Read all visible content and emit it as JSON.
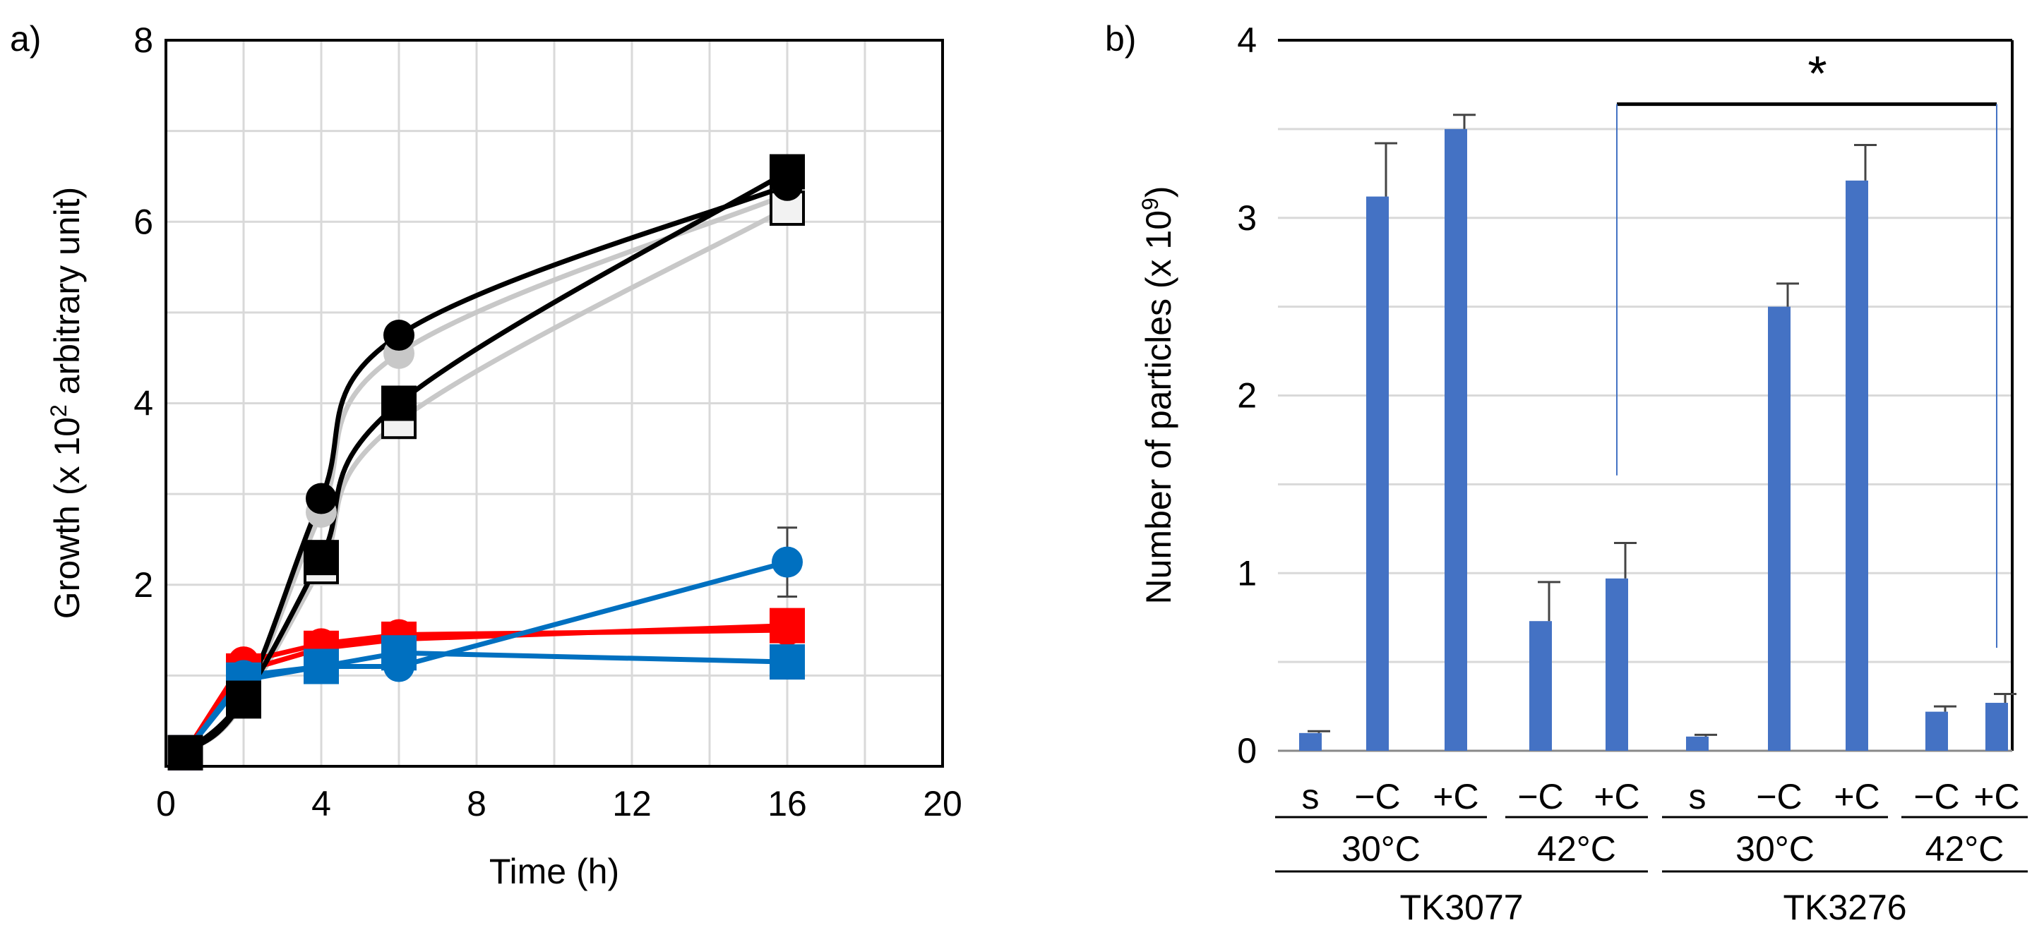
{
  "colors": {
    "black": "#000000",
    "gray": "#c8c8c8",
    "red": "#ff0000",
    "blue": "#0070c0",
    "bar": "#4472c4",
    "grid": "#d9d9d9"
  },
  "chart_data": [
    {
      "panel": "a)",
      "type": "line",
      "xlabel": "Time (h)",
      "ylabel_pre": "Growth (x 10",
      "ylabel_sup": "2",
      "ylabel_post": " arbitrary unit)",
      "xlim": [
        0,
        20
      ],
      "ylim": [
        0,
        8
      ],
      "xticks": [
        "0",
        "4",
        "8",
        "12",
        "16",
        "20"
      ],
      "yticks": [
        "2",
        "4",
        "6",
        "8"
      ],
      "series": [
        {
          "name": "black-circle",
          "color": "black",
          "marker": "circle",
          "x": [
            0.5,
            2,
            4,
            6,
            16
          ],
          "y": [
            0.15,
            0.75,
            2.95,
            4.75,
            6.4
          ]
        },
        {
          "name": "gray-circle",
          "color": "gray",
          "marker": "circle",
          "x": [
            0.5,
            2,
            4,
            6,
            16
          ],
          "y": [
            0.15,
            0.72,
            2.8,
            4.55,
            6.3
          ]
        },
        {
          "name": "black-square",
          "color": "black",
          "marker": "square",
          "x": [
            0.5,
            2,
            4,
            6,
            16
          ],
          "y": [
            0.15,
            0.75,
            2.3,
            4.0,
            6.55
          ]
        },
        {
          "name": "open-square",
          "color": "black",
          "marker": "open-square",
          "x": [
            0.5,
            2,
            4,
            6,
            16
          ],
          "y": [
            0.15,
            0.72,
            2.2,
            3.8,
            6.15
          ]
        },
        {
          "name": "red-circle",
          "color": "red",
          "marker": "circle",
          "x": [
            0.5,
            2,
            4,
            6,
            16
          ],
          "y": [
            0.15,
            1.15,
            1.35,
            1.45,
            1.5
          ]
        },
        {
          "name": "red-square",
          "color": "red",
          "marker": "square",
          "x": [
            0.5,
            2,
            4,
            6,
            16
          ],
          "y": [
            0.15,
            1.05,
            1.3,
            1.4,
            1.55
          ]
        },
        {
          "name": "blue-circle",
          "color": "blue",
          "marker": "circle",
          "x": [
            0.5,
            2,
            4,
            6,
            16
          ],
          "y": [
            0.15,
            1.0,
            1.1,
            1.1,
            2.25
          ],
          "err": [
            0,
            0,
            0,
            0,
            0.38
          ]
        },
        {
          "name": "blue-square",
          "color": "blue",
          "marker": "square",
          "x": [
            0.5,
            2,
            4,
            6,
            16
          ],
          "y": [
            0.15,
            0.95,
            1.1,
            1.25,
            1.15
          ]
        }
      ]
    },
    {
      "panel": "b)",
      "type": "bar",
      "ylabel_pre": "Number of particles (x 10",
      "ylabel_sup": "9",
      "ylabel_post": ")",
      "ylim": [
        0,
        4
      ],
      "yticks": [
        "0",
        "1",
        "2",
        "3",
        "4"
      ],
      "categories": [
        "s",
        "−C",
        "+C",
        "−C",
        "+C",
        "s",
        "−C",
        "+C",
        "−C",
        "+C"
      ],
      "values": [
        0.1,
        3.12,
        3.5,
        0.73,
        0.97,
        0.08,
        2.5,
        3.21,
        0.22,
        0.27
      ],
      "errors": [
        0.01,
        0.3,
        0.08,
        0.22,
        0.2,
        0.01,
        0.13,
        0.2,
        0.03,
        0.05
      ],
      "temp_labels": [
        "30°C",
        "42°C",
        "30°C",
        "42°C"
      ],
      "strain_labels": [
        "TK3077",
        "TK3276"
      ],
      "significance": "*"
    }
  ]
}
